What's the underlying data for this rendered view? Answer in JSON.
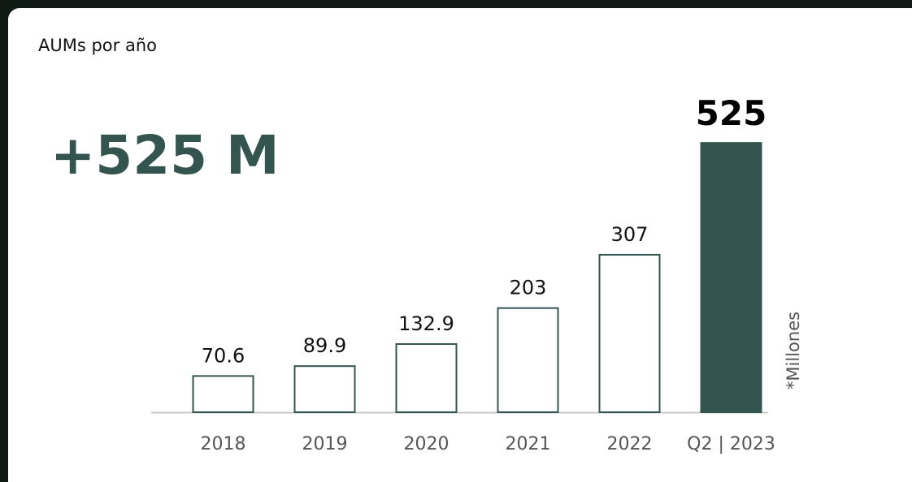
{
  "chart_data": {
    "type": "bar",
    "title": "AUMs por año",
    "annotation": "+525 M",
    "unit_label": "*Millones",
    "categories": [
      "2018",
      "2019",
      "2020",
      "2021",
      "2022",
      "Q2 | 2023"
    ],
    "values": [
      70.6,
      89.9,
      132.9,
      203,
      307,
      525
    ],
    "colors": [
      "#ffffff",
      "#ffffff",
      "#ffffff",
      "#ffffff",
      "#ffffff",
      "#33544f"
    ],
    "edgecolor": "#33544f",
    "ylim": [
      0,
      560
    ]
  }
}
